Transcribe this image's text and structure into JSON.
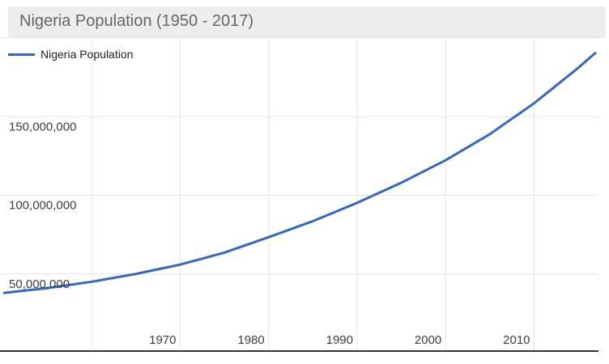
{
  "chart_data": {
    "type": "line",
    "title": "Nigeria Population (1950 - 2017)",
    "xlabel": "",
    "ylabel": "",
    "xlim": [
      1950,
      2017
    ],
    "ylim": [
      0,
      200000000
    ],
    "grid": true,
    "legend_position": "top-left",
    "x": [
      1950,
      1955,
      1960,
      1965,
      1970,
      1975,
      1980,
      1985,
      1990,
      1995,
      2000,
      2005,
      2010,
      2015,
      2017
    ],
    "series": [
      {
        "name": "Nigeria Population",
        "color": "#3366cc",
        "values": [
          37900000,
          41100000,
          45100000,
          50100000,
          56000000,
          63600000,
          73400000,
          83600000,
          95200000,
          108000000,
          122300000,
          138900000,
          158500000,
          181100000,
          190900000
        ]
      }
    ],
    "x_ticks": [
      {
        "value": 1960,
        "label": ""
      },
      {
        "value": 1970,
        "label": "1970"
      },
      {
        "value": 1980,
        "label": "1980"
      },
      {
        "value": 1990,
        "label": "1990"
      },
      {
        "value": 2000,
        "label": "2000"
      },
      {
        "value": 2010,
        "label": "2010"
      }
    ],
    "y_ticks": [
      {
        "value": 50000000,
        "label": "50,000,000"
      },
      {
        "value": 100000000,
        "label": "100,000,000"
      },
      {
        "value": 150000000,
        "label": "150,000,000"
      },
      {
        "value": 200000000,
        "label": ""
      }
    ],
    "colors": {
      "line": "#3366cc",
      "grid": "#e6e6e6",
      "axis": "#333333",
      "tick_label": "#3d3d3d",
      "title_bg": "#eeeeee",
      "title_text": "#656565",
      "legend_text": "#222222"
    }
  }
}
